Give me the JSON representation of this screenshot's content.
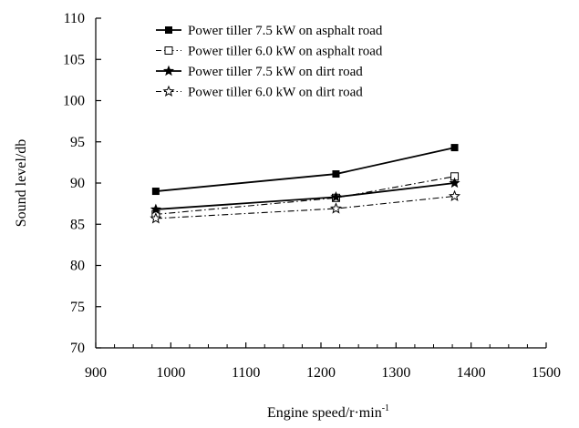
{
  "chart_data": {
    "type": "line",
    "title": "",
    "xlabel": "Engine speed/r·min",
    "xlabel_sup": "-1",
    "ylabel": "Sound level/db",
    "xlim": [
      900,
      1500
    ],
    "ylim": [
      70,
      110
    ],
    "x_ticks": [
      900,
      1000,
      1100,
      1200,
      1300,
      1400,
      1500
    ],
    "y_ticks": [
      70,
      75,
      80,
      85,
      90,
      95,
      100,
      105,
      110
    ],
    "grid": false,
    "legend_position": "top-left",
    "x": [
      980,
      1220,
      1378
    ],
    "series": [
      {
        "name": "Power tiller 7.5 kW on asphalt road",
        "values": [
          89.0,
          91.1,
          94.3
        ],
        "marker": "filled-square",
        "line": "solid",
        "width": 1.8
      },
      {
        "name": "Power tiller 6.0 kW on asphalt road",
        "values": [
          86.2,
          88.2,
          90.8
        ],
        "marker": "open-square",
        "line": "dashdot",
        "width": 1.1
      },
      {
        "name": "Power tiller 7.5 kW on dirt road",
        "values": [
          86.8,
          88.3,
          90.0
        ],
        "marker": "filled-star",
        "line": "solid",
        "width": 1.8
      },
      {
        "name": "Power tiller 6.0 kW on dirt road",
        "values": [
          85.7,
          86.9,
          88.4
        ],
        "marker": "open-star",
        "line": "dashdot",
        "width": 1.1
      }
    ]
  }
}
